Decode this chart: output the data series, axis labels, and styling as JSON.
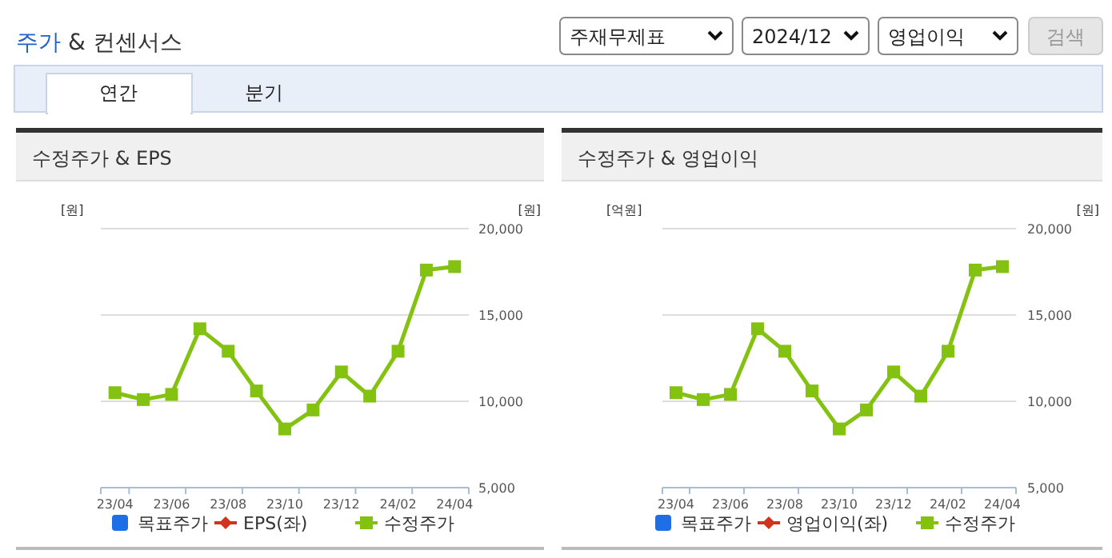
{
  "chart_data": [
    {
      "type": "other",
      "title": "주가 & 컨센서스",
      "annotations": [
        "주재무제표",
        "2024/12",
        "영업이익",
        "검색",
        "연간",
        "분기"
      ]
    },
    {
      "type": "line",
      "title": "수정주가 & EPS",
      "ylabel": "[원]",
      "y2label": "[원]",
      "categories": [
        "23/04",
        null,
        "23/06",
        null,
        "23/08",
        null,
        "23/10",
        null,
        "23/12",
        null,
        "24/02",
        null,
        "24/04"
      ],
      "series": [
        {
          "name": "목표주가",
          "color": "#1e6ee6",
          "type": "scatter",
          "axis": "y2",
          "values": [
            null,
            null,
            null,
            null,
            null,
            null,
            null,
            null,
            null,
            null,
            null,
            null,
            null
          ]
        },
        {
          "name": "EPS(좌)",
          "color": "#d0341c",
          "type": "line",
          "values": [
            null,
            null,
            null,
            null,
            null,
            null,
            null,
            null,
            null,
            null,
            null,
            null,
            null
          ]
        },
        {
          "name": "수정주가",
          "color": "#84c212",
          "type": "line",
          "axis": "y2",
          "values": [
            10500,
            10100,
            10400,
            14200,
            12900,
            10600,
            8400,
            9500,
            11700,
            10300,
            12900,
            17600,
            17800
          ]
        }
      ],
      "y2lim": [
        5000,
        20000
      ],
      "y2ticks": [
        {
          "value": 5000,
          "label": "5,000"
        },
        {
          "value": 10000,
          "label": "10,000"
        },
        {
          "value": 15000,
          "label": "15,000"
        },
        {
          "value": 20000,
          "label": "20,000"
        }
      ],
      "grid": true,
      "legend": "bottom",
      "marker": "square"
    },
    {
      "type": "line",
      "title": "수정주가 & 영업이익",
      "ylabel": "[억원]",
      "y2label": "[원]",
      "categories": [
        "23/04",
        null,
        "23/06",
        null,
        "23/08",
        null,
        "23/10",
        null,
        "23/12",
        null,
        "24/02",
        null,
        "24/04"
      ],
      "series": [
        {
          "name": "목표주가",
          "color": "#1e6ee6",
          "type": "scatter",
          "axis": "y2",
          "values": [
            null,
            null,
            null,
            null,
            null,
            null,
            null,
            null,
            null,
            null,
            null,
            null,
            null
          ]
        },
        {
          "name": "영업이익(좌)",
          "color": "#d0341c",
          "type": "line",
          "values": [
            null,
            null,
            null,
            null,
            null,
            null,
            null,
            null,
            null,
            null,
            null,
            null,
            null
          ]
        },
        {
          "name": "수정주가",
          "color": "#84c212",
          "type": "line",
          "axis": "y2",
          "values": [
            10500,
            10100,
            10400,
            14200,
            12900,
            10600,
            8400,
            9500,
            11700,
            10300,
            12900,
            17600,
            17800
          ]
        }
      ],
      "y2lim": [
        5000,
        20000
      ],
      "y2ticks": [
        {
          "value": 5000,
          "label": "5,000"
        },
        {
          "value": 10000,
          "label": "10,000"
        },
        {
          "value": 15000,
          "label": "15,000"
        },
        {
          "value": 20000,
          "label": "20,000"
        }
      ],
      "grid": true,
      "legend": "bottom",
      "marker": "square"
    }
  ]
}
